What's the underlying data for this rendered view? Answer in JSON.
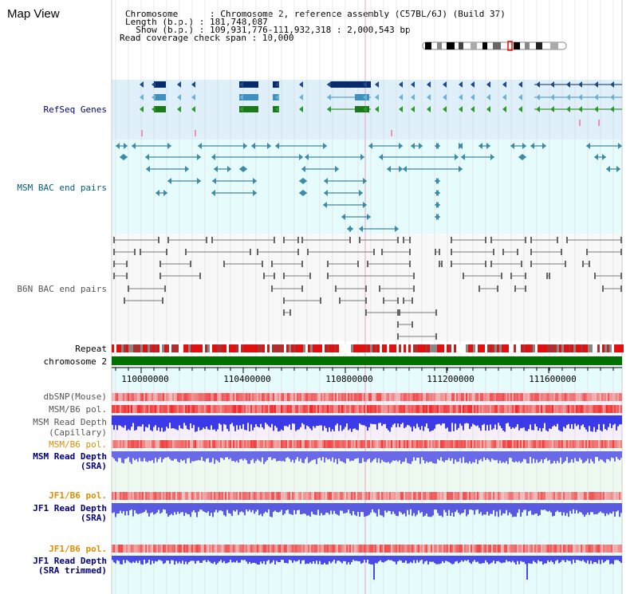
{
  "app": {
    "title": "Map View"
  },
  "info": {
    "chromosome": "Chromosome      : Chromosome 2, reference assembly (C57BL/6J) (Build 37)",
    "length": "Length (b.p.) : 181,748,087",
    "show": "  Show (b.p.) : 109,931,776-111,932,318 : 2,000,543 bp",
    "span": "Read coverage check span : 10,000"
  },
  "tracks": {
    "refseq": "RefSeq Genes",
    "msm_bac": "MSM BAC end pairs",
    "b6n_bac": "B6N BAC end pairs",
    "repeat": "Repeat",
    "chromosome": "chromosome 2",
    "dbsnp": "dbSNP(Mouse)",
    "msm_b6_pol": "MSM/B6 pol.",
    "msm_depth_cap_1": "MSM Read Depth",
    "msm_depth_cap_2": "(Capillary)",
    "msm_b6_pol2": "MSM/B6 pol.",
    "msm_depth_sra_1": "MSM Read Depth",
    "msm_depth_sra_2": "(SRA)",
    "jf1_b6_pol": "JF1/B6 pol.",
    "jf1_depth_sra_1": "JF1 Read Depth",
    "jf1_depth_sra_2": "(SRA)",
    "jf1_b6_pol2": "JF1/B6 pol.",
    "jf1_depth_trim_1": "JF1 Read Depth",
    "jf1_depth_trim_2": "(SRA trimmed)"
  },
  "ruler": {
    "ticks": [
      "110000000",
      "110400000",
      "110800000",
      "111200000",
      "111600000"
    ]
  },
  "colors": {
    "refseq_label": "#000080",
    "msm_label": "#00607a",
    "b6n_label": "#555555",
    "pol_orange": "#e08c00",
    "depth_blue": "#000080"
  }
}
